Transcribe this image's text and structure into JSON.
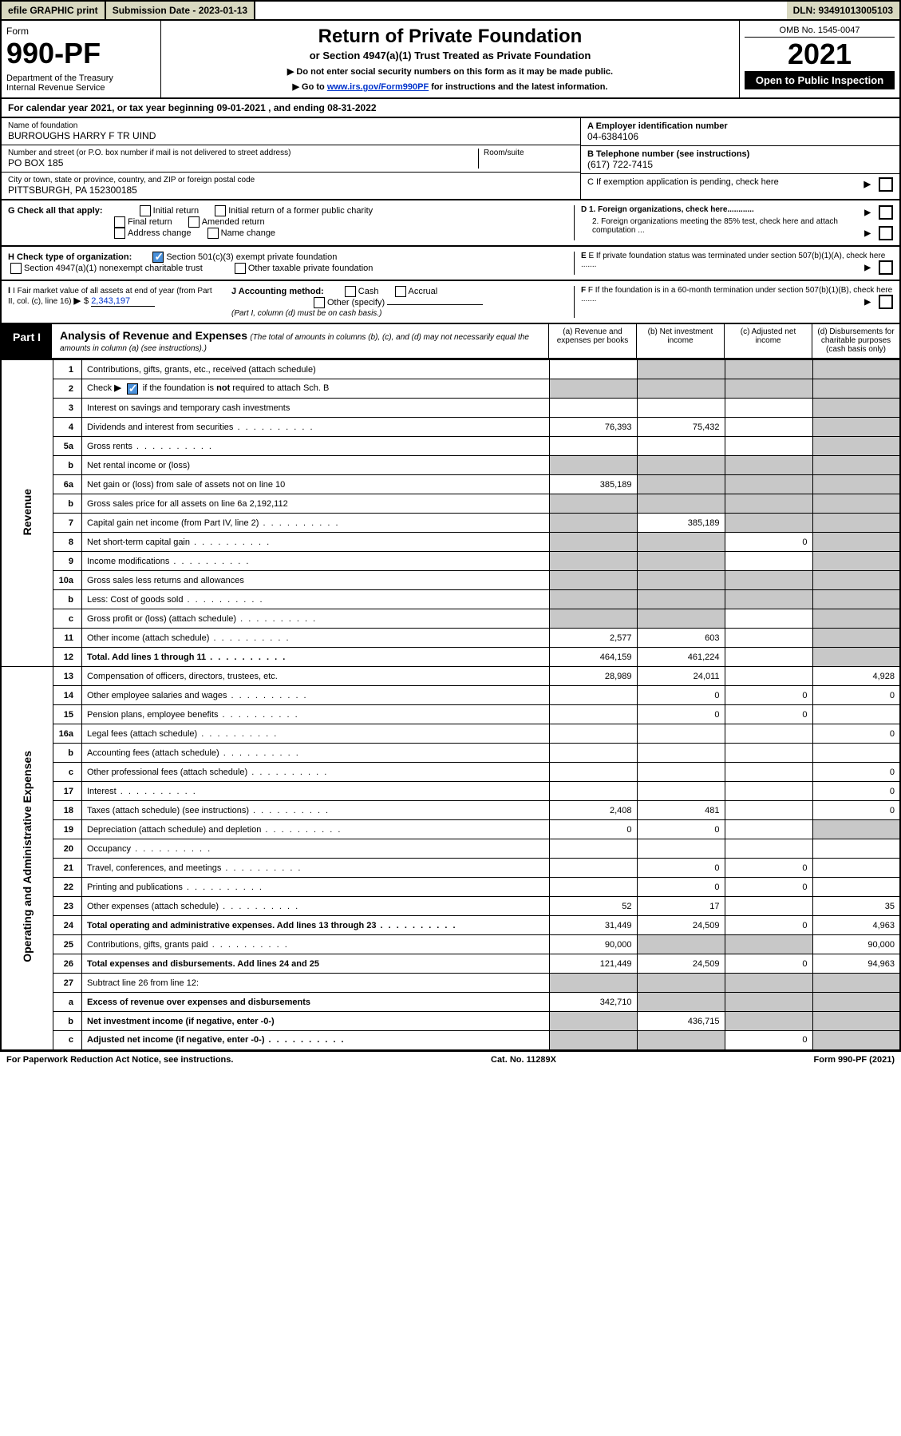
{
  "topbar": {
    "efile": "efile GRAPHIC print",
    "subdate_label": "Submission Date - 2023-01-13",
    "dln": "DLN: 93491013005103"
  },
  "header": {
    "form_label": "Form",
    "form_no": "990-PF",
    "dept": "Department of the Treasury",
    "irs": "Internal Revenue Service",
    "title": "Return of Private Foundation",
    "subtitle": "or Section 4947(a)(1) Trust Treated as Private Foundation",
    "note1": "▶ Do not enter social security numbers on this form as it may be made public.",
    "note2_pre": "▶ Go to ",
    "note2_link": "www.irs.gov/Form990PF",
    "note2_post": " for instructions and the latest information.",
    "omb": "OMB No. 1545-0047",
    "year": "2021",
    "open": "Open to Public Inspection"
  },
  "cal_year": "For calendar year 2021, or tax year beginning 09-01-2021             , and ending 08-31-2022",
  "info": {
    "name_label": "Name of foundation",
    "name": "BURROUGHS HARRY F TR UIND",
    "addr_label": "Number and street (or P.O. box number if mail is not delivered to street address)",
    "room_label": "Room/suite",
    "addr": "PO BOX 185",
    "city_label": "City or town, state or province, country, and ZIP or foreign postal code",
    "city": "PITTSBURGH, PA  152300185",
    "a_label": "A Employer identification number",
    "a_val": "04-6384106",
    "b_label": "B Telephone number (see instructions)",
    "b_val": "(617) 722-7415",
    "c_label": "C If exemption application is pending, check here",
    "d1": "D 1. Foreign organizations, check here............",
    "d2": "2. Foreign organizations meeting the 85% test, check here and attach computation ...",
    "e": "E  If private foundation status was terminated under section 507(b)(1)(A), check here .......",
    "f": "F  If the foundation is in a 60-month termination under section 507(b)(1)(B), check here .......",
    "g_label": "G Check all that apply:",
    "g_opts": [
      "Initial return",
      "Initial return of a former public charity",
      "Final return",
      "Amended return",
      "Address change",
      "Name change"
    ],
    "h_label": "H Check type of organization:",
    "h_opt1": "Section 501(c)(3) exempt private foundation",
    "h_opt2": "Section 4947(a)(1) nonexempt charitable trust",
    "h_opt3": "Other taxable private foundation",
    "i_label": "I Fair market value of all assets at end of year (from Part II, col. (c), line 16)",
    "i_val": "2,343,197",
    "j_label": "J Accounting method:",
    "j_cash": "Cash",
    "j_accrual": "Accrual",
    "j_other": "Other (specify)",
    "j_note": "(Part I, column (d) must be on cash basis.)"
  },
  "part1": {
    "badge": "Part I",
    "title": "Analysis of Revenue and Expenses",
    "title_note": "(The total of amounts in columns (b), (c), and (d) may not necessarily equal the amounts in column (a) (see instructions).)",
    "col_a": "(a)  Revenue and expenses per books",
    "col_b": "(b)  Net investment income",
    "col_c": "(c)  Adjusted net income",
    "col_d": "(d)  Disbursements for charitable purposes (cash basis only)"
  },
  "side": {
    "revenue": "Revenue",
    "expenses": "Operating and Administrative Expenses"
  },
  "rows": [
    {
      "n": "1",
      "d": "Contributions, gifts, grants, etc., received (attach schedule)",
      "a": "",
      "b": "",
      "c": "",
      "dd": "",
      "sb": true,
      "sc": true,
      "sd": true
    },
    {
      "n": "2",
      "d": "Check ▶ ☑ if the foundation is not required to attach Sch. B",
      "a": "",
      "b": "",
      "c": "",
      "dd": "",
      "sb": true,
      "sc": true,
      "sd": true,
      "sa": true,
      "html": true
    },
    {
      "n": "3",
      "d": "Interest on savings and temporary cash investments",
      "a": "",
      "b": "",
      "c": "",
      "dd": "",
      "sd": true
    },
    {
      "n": "4",
      "d": "Dividends and interest from securities",
      "a": "76,393",
      "b": "75,432",
      "c": "",
      "dd": "",
      "sd": true,
      "dots": true
    },
    {
      "n": "5a",
      "d": "Gross rents",
      "a": "",
      "b": "",
      "c": "",
      "dd": "",
      "sd": true,
      "dots": true
    },
    {
      "n": "b",
      "d": "Net rental income or (loss)",
      "a": "",
      "b": "",
      "c": "",
      "dd": "",
      "sa": true,
      "sb": true,
      "sc": true,
      "sd": true
    },
    {
      "n": "6a",
      "d": "Net gain or (loss) from sale of assets not on line 10",
      "a": "385,189",
      "b": "",
      "c": "",
      "dd": "",
      "sb": true,
      "sc": true,
      "sd": true
    },
    {
      "n": "b",
      "d": "Gross sales price for all assets on line 6a          2,192,112",
      "a": "",
      "b": "",
      "c": "",
      "dd": "",
      "sa": true,
      "sb": true,
      "sc": true,
      "sd": true
    },
    {
      "n": "7",
      "d": "Capital gain net income (from Part IV, line 2)",
      "a": "",
      "b": "385,189",
      "c": "",
      "dd": "",
      "sa": true,
      "sc": true,
      "sd": true,
      "dots": true
    },
    {
      "n": "8",
      "d": "Net short-term capital gain",
      "a": "",
      "b": "",
      "c": "0",
      "dd": "",
      "sa": true,
      "sb": true,
      "sd": true,
      "dots": true
    },
    {
      "n": "9",
      "d": "Income modifications",
      "a": "",
      "b": "",
      "c": "",
      "dd": "",
      "sa": true,
      "sb": true,
      "sd": true,
      "dots": true
    },
    {
      "n": "10a",
      "d": "Gross sales less returns and allowances",
      "a": "",
      "b": "",
      "c": "",
      "dd": "",
      "sa": true,
      "sb": true,
      "sc": true,
      "sd": true
    },
    {
      "n": "b",
      "d": "Less: Cost of goods sold",
      "a": "",
      "b": "",
      "c": "",
      "dd": "",
      "sa": true,
      "sb": true,
      "sc": true,
      "sd": true,
      "dots": true
    },
    {
      "n": "c",
      "d": "Gross profit or (loss) (attach schedule)",
      "a": "",
      "b": "",
      "c": "",
      "dd": "",
      "sa": true,
      "sb": true,
      "sd": true,
      "dots": true
    },
    {
      "n": "11",
      "d": "Other income (attach schedule)",
      "a": "2,577",
      "b": "603",
      "c": "",
      "dd": "",
      "sd": true,
      "dots": true
    },
    {
      "n": "12",
      "d": "Total. Add lines 1 through 11",
      "a": "464,159",
      "b": "461,224",
      "c": "",
      "dd": "",
      "sd": true,
      "bold": true,
      "dots": true
    },
    {
      "n": "13",
      "d": "Compensation of officers, directors, trustees, etc.",
      "a": "28,989",
      "b": "24,011",
      "c": "",
      "dd": "4,928"
    },
    {
      "n": "14",
      "d": "Other employee salaries and wages",
      "a": "",
      "b": "0",
      "c": "0",
      "dd": "0",
      "dots": true
    },
    {
      "n": "15",
      "d": "Pension plans, employee benefits",
      "a": "",
      "b": "0",
      "c": "0",
      "dd": "",
      "dots": true
    },
    {
      "n": "16a",
      "d": "Legal fees (attach schedule)",
      "a": "",
      "b": "",
      "c": "",
      "dd": "0",
      "dots": true
    },
    {
      "n": "b",
      "d": "Accounting fees (attach schedule)",
      "a": "",
      "b": "",
      "c": "",
      "dd": "",
      "dots": true
    },
    {
      "n": "c",
      "d": "Other professional fees (attach schedule)",
      "a": "",
      "b": "",
      "c": "",
      "dd": "0",
      "dots": true
    },
    {
      "n": "17",
      "d": "Interest",
      "a": "",
      "b": "",
      "c": "",
      "dd": "0",
      "dots": true
    },
    {
      "n": "18",
      "d": "Taxes (attach schedule) (see instructions)",
      "a": "2,408",
      "b": "481",
      "c": "",
      "dd": "0",
      "dots": true
    },
    {
      "n": "19",
      "d": "Depreciation (attach schedule) and depletion",
      "a": "0",
      "b": "0",
      "c": "",
      "dd": "",
      "sd": true,
      "dots": true
    },
    {
      "n": "20",
      "d": "Occupancy",
      "a": "",
      "b": "",
      "c": "",
      "dd": "",
      "dots": true
    },
    {
      "n": "21",
      "d": "Travel, conferences, and meetings",
      "a": "",
      "b": "0",
      "c": "0",
      "dd": "",
      "dots": true
    },
    {
      "n": "22",
      "d": "Printing and publications",
      "a": "",
      "b": "0",
      "c": "0",
      "dd": "",
      "dots": true
    },
    {
      "n": "23",
      "d": "Other expenses (attach schedule)",
      "a": "52",
      "b": "17",
      "c": "",
      "dd": "35",
      "dots": true
    },
    {
      "n": "24",
      "d": "Total operating and administrative expenses. Add lines 13 through 23",
      "a": "31,449",
      "b": "24,509",
      "c": "0",
      "dd": "4,963",
      "bold": true,
      "dots": true
    },
    {
      "n": "25",
      "d": "Contributions, gifts, grants paid",
      "a": "90,000",
      "b": "",
      "c": "",
      "dd": "90,000",
      "sb": true,
      "sc": true,
      "dots": true
    },
    {
      "n": "26",
      "d": "Total expenses and disbursements. Add lines 24 and 25",
      "a": "121,449",
      "b": "24,509",
      "c": "0",
      "dd": "94,963",
      "bold": true
    },
    {
      "n": "27",
      "d": "Subtract line 26 from line 12:",
      "a": "",
      "b": "",
      "c": "",
      "dd": "",
      "sa": true,
      "sb": true,
      "sc": true,
      "sd": true
    },
    {
      "n": "a",
      "d": "Excess of revenue over expenses and disbursements",
      "a": "342,710",
      "b": "",
      "c": "",
      "dd": "",
      "sb": true,
      "sc": true,
      "sd": true,
      "bold": true
    },
    {
      "n": "b",
      "d": "Net investment income (if negative, enter -0-)",
      "a": "",
      "b": "436,715",
      "c": "",
      "dd": "",
      "sa": true,
      "sc": true,
      "sd": true,
      "bold": true
    },
    {
      "n": "c",
      "d": "Adjusted net income (if negative, enter -0-)",
      "a": "",
      "b": "",
      "c": "0",
      "dd": "",
      "sa": true,
      "sb": true,
      "sd": true,
      "bold": true,
      "dots": true
    }
  ],
  "revenue_end_idx": 15,
  "footer": {
    "left": "For Paperwork Reduction Act Notice, see instructions.",
    "mid": "Cat. No. 11289X",
    "right": "Form 990-PF (2021)"
  }
}
